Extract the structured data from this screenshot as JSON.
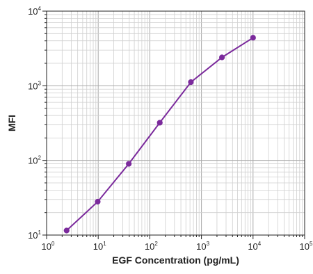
{
  "chart_data": {
    "type": "line",
    "title": "",
    "xlabel": "EGF Concentration (pg/mL)",
    "ylabel": "MFI",
    "x_scale": "log",
    "y_scale": "log",
    "xlim": [
      1,
      100000
    ],
    "ylim": [
      10,
      10000
    ],
    "grid": true,
    "x_ticks": [
      {
        "base": "10",
        "exp": "0",
        "value": 1
      },
      {
        "base": "10",
        "exp": "1",
        "value": 10
      },
      {
        "base": "10",
        "exp": "2",
        "value": 100
      },
      {
        "base": "10",
        "exp": "3",
        "value": 1000
      },
      {
        "base": "10",
        "exp": "4",
        "value": 10000
      },
      {
        "base": "10",
        "exp": "5",
        "value": 100000
      }
    ],
    "y_ticks": [
      {
        "base": "10",
        "exp": "1",
        "value": 10
      },
      {
        "base": "10",
        "exp": "2",
        "value": 100
      },
      {
        "base": "10",
        "exp": "3",
        "value": 1000
      },
      {
        "base": "10",
        "exp": "4",
        "value": 10000
      }
    ],
    "series": [
      {
        "color": "#7b2a9c",
        "x": [
          2.44,
          9.77,
          39.1,
          156,
          625,
          2500,
          10000
        ],
        "y": [
          11.5,
          28,
          90,
          320,
          1120,
          2400,
          4400
        ]
      }
    ]
  }
}
